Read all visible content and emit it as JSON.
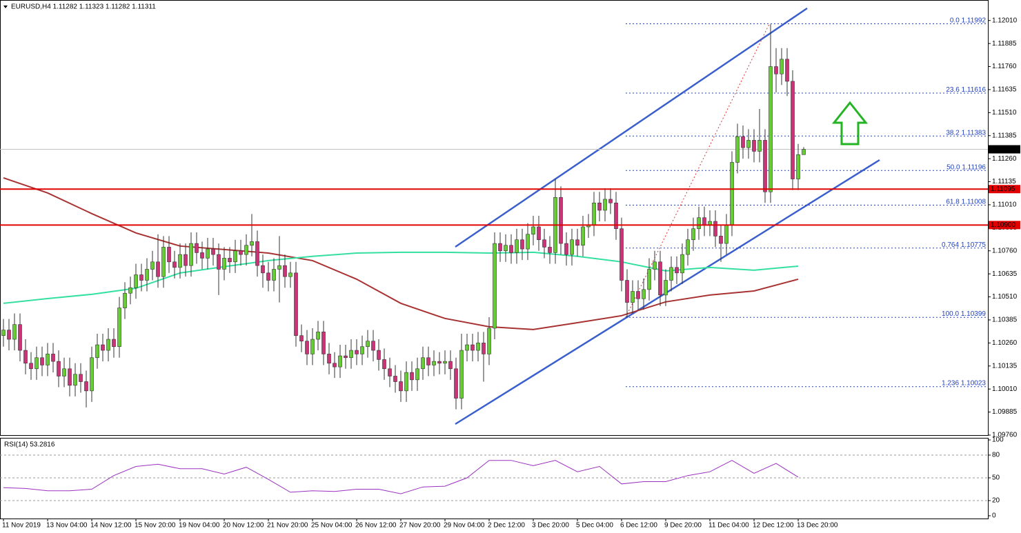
{
  "chart_data": [
    {
      "type": "candlestick",
      "title": "EURUSD,H4 1.11282 1.11323 1.11282 1.11311",
      "categories": [
        "11 Nov 2019",
        null,
        null,
        null,
        null,
        null,
        null,
        null,
        "13 Nov 04:00",
        null,
        null,
        null,
        null,
        null,
        null,
        null,
        "14 Nov 12:00",
        null,
        null,
        null,
        null,
        null,
        null,
        null,
        "15 Nov 20:00",
        null,
        null,
        null,
        null,
        null,
        null,
        null,
        "19 Nov 04:00",
        null,
        null,
        null,
        null,
        null,
        null,
        null,
        "20 Nov 12:00",
        null,
        null,
        null,
        null,
        null,
        null,
        null,
        "21 Nov 20:00",
        null,
        null,
        null,
        null,
        null,
        null,
        null,
        "25 Nov 04:00",
        null,
        null,
        null,
        null,
        null,
        null,
        null,
        "26 Nov 12:00",
        null,
        null,
        null,
        null,
        null,
        null,
        null,
        "27 Nov 20:00",
        null,
        null,
        null,
        null,
        null,
        null,
        null,
        "29 Nov 04:00",
        null,
        null,
        null,
        null,
        null,
        null,
        null,
        "2 Dec 12:00",
        null,
        null,
        null,
        null,
        null,
        null,
        null,
        "3 Dec 20:00",
        null,
        null,
        null,
        null,
        null,
        null,
        null,
        "5 Dec 04:00",
        null,
        null,
        null,
        null,
        null,
        null,
        null,
        "6 Dec 12:00",
        null,
        null,
        null,
        null,
        null,
        null,
        null,
        "9 Dec 20:00",
        null,
        null,
        null,
        null,
        null,
        null,
        null,
        "11 Dec 04:00",
        null,
        null,
        null,
        null,
        null,
        null,
        null,
        "12 Dec 12:00",
        null,
        null,
        null,
        null,
        null,
        null,
        null,
        "13 Dec 20:00",
        null
      ],
      "open": [
        1.103,
        1.1033,
        1.1028,
        1.1036,
        1.1022,
        1.1015,
        1.1012,
        1.1018,
        1.1014,
        1.102,
        1.1016,
        1.1008,
        1.1012,
        1.1003,
        1.1009,
        1.1005,
        1.1,
        1.1018,
        1.1025,
        1.1022,
        1.1028,
        1.1024,
        1.1045,
        1.1053,
        1.1056,
        1.1063,
        1.106,
        1.1066,
        1.107,
        1.1062,
        1.1078,
        1.107,
        1.1067,
        1.1074,
        1.1068,
        1.108,
        1.1075,
        1.1072,
        1.1077,
        1.1074,
        1.1066,
        1.1072,
        1.107,
        1.1076,
        1.1074,
        1.1079,
        1.1081,
        1.1068,
        1.1064,
        1.106,
        1.1066,
        1.1068,
        1.1062,
        1.1064,
        1.103,
        1.1027,
        1.102,
        1.1028,
        1.1032,
        1.102,
        1.1015,
        1.1013,
        1.1019,
        1.1018,
        1.1022,
        1.102,
        1.1024,
        1.1027,
        1.1022,
        1.1017,
        1.1012,
        1.1008,
        1.1005,
        1.1,
        1.101,
        1.1006,
        1.1012,
        1.1018,
        1.1014,
        1.1016,
        1.1015,
        1.1016,
        1.1012,
        1.0996,
        1.1022,
        1.1025,
        1.1022,
        1.1026,
        1.102,
        1.1034,
        1.108,
        1.1076,
        1.1079,
        1.1075,
        1.1082,
        1.1077,
        1.1085,
        1.1089,
        1.1082,
        1.1078,
        1.1075,
        1.1105,
        1.108,
        1.1074,
        1.1082,
        1.1079,
        1.1089,
        1.109,
        1.1102,
        1.1098,
        1.1104,
        1.1102,
        1.1088,
        1.106,
        1.1048,
        1.1054,
        1.105,
        1.1055,
        1.1066,
        1.107,
        1.1052,
        1.106,
        1.1067,
        1.1064,
        1.1074,
        1.1082,
        1.1088,
        1.1094,
        1.109,
        1.1092,
        1.1084,
        1.108,
        1.109,
        1.1124,
        1.1138,
        1.1132,
        1.1136,
        1.113,
        1.1136,
        1.1108,
        1.1176,
        1.1172,
        1.118,
        1.1168,
        1.1115,
        1.11282
      ],
      "high": [
        1.1039,
        1.1039,
        1.1042,
        1.1042,
        1.1028,
        1.1021,
        1.1024,
        1.1024,
        1.1026,
        1.1026,
        1.1022,
        1.1018,
        1.1018,
        1.1015,
        1.1015,
        1.1011,
        1.1024,
        1.1031,
        1.1031,
        1.1034,
        1.1034,
        1.1051,
        1.1059,
        1.1062,
        1.1069,
        1.1069,
        1.1072,
        1.1076,
        1.1085,
        1.1084,
        1.1084,
        1.1076,
        1.108,
        1.108,
        1.1086,
        1.1086,
        1.1081,
        1.1083,
        1.1083,
        1.108,
        1.1078,
        1.1078,
        1.1082,
        1.1082,
        1.1085,
        1.1096,
        1.1087,
        1.1074,
        1.107,
        1.1072,
        1.1084,
        1.1074,
        1.107,
        1.107,
        1.1036,
        1.1033,
        1.1034,
        1.1038,
        1.1038,
        1.1026,
        1.1021,
        1.1025,
        1.1025,
        1.1028,
        1.1028,
        1.103,
        1.1033,
        1.1033,
        1.1028,
        1.1023,
        1.1018,
        1.1014,
        1.1011,
        1.1016,
        1.1016,
        1.1018,
        1.1024,
        1.1024,
        1.1022,
        1.1021,
        1.1022,
        1.1022,
        1.1018,
        1.1031,
        1.1031,
        1.1031,
        1.1032,
        1.1032,
        1.104,
        1.1086,
        1.1086,
        1.1085,
        1.1085,
        1.1088,
        1.1088,
        1.1091,
        1.1095,
        1.1095,
        1.1088,
        1.1084,
        1.1115,
        1.1111,
        1.1086,
        1.1088,
        1.1088,
        1.1095,
        1.1096,
        1.1108,
        1.1108,
        1.111,
        1.111,
        1.1108,
        1.1094,
        1.1066,
        1.106,
        1.106,
        1.1061,
        1.1072,
        1.1076,
        1.1076,
        1.1066,
        1.1073,
        1.1073,
        1.108,
        1.1088,
        1.1094,
        1.11,
        1.11,
        1.1098,
        1.1098,
        1.109,
        1.1096,
        1.113,
        1.1145,
        1.1144,
        1.1142,
        1.1142,
        1.1153,
        1.1142,
        1.1199,
        1.1186,
        1.1186,
        1.1186,
        1.1174,
        1.1134,
        1.11323
      ],
      "low": [
        1.1024,
        1.1022,
        1.1022,
        1.1016,
        1.1009,
        1.1006,
        1.1006,
        1.1008,
        1.1008,
        1.101,
        1.1002,
        1.1002,
        1.0997,
        1.0997,
        1.0999,
        1.0991,
        1.0994,
        1.1012,
        1.1016,
        1.1016,
        1.1018,
        1.1018,
        1.1039,
        1.1047,
        1.105,
        1.1054,
        1.1054,
        1.106,
        1.1056,
        1.1056,
        1.1064,
        1.1061,
        1.1061,
        1.1062,
        1.1062,
        1.1069,
        1.1066,
        1.1066,
        1.1068,
        1.1052,
        1.106,
        1.1064,
        1.1064,
        1.1068,
        1.1068,
        1.1073,
        1.1062,
        1.1056,
        1.1054,
        1.1054,
        1.1048,
        1.1056,
        1.1056,
        1.1024,
        1.1021,
        1.1014,
        1.1014,
        1.1022,
        1.1014,
        1.1009,
        1.1007,
        1.1007,
        1.1012,
        1.1012,
        1.1014,
        1.1014,
        1.1018,
        1.1016,
        1.1011,
        1.1006,
        1.1002,
        1.0999,
        1.0994,
        1.0994,
        1.1,
        1.1,
        1.1006,
        1.1008,
        1.1008,
        1.1009,
        1.1009,
        1.1006,
        1.099,
        1.099,
        1.1016,
        1.1016,
        1.1016,
        1.1005,
        1.1014,
        1.1028,
        1.107,
        1.107,
        1.1069,
        1.1069,
        1.1071,
        1.1071,
        1.1079,
        1.1076,
        1.1072,
        1.1069,
        1.1069,
        1.1074,
        1.1068,
        1.1068,
        1.1073,
        1.1073,
        1.1083,
        1.1084,
        1.1092,
        1.1092,
        1.1096,
        1.1082,
        1.1054,
        1.104,
        1.1042,
        1.1044,
        1.1044,
        1.1049,
        1.106,
        1.1046,
        1.1046,
        1.1054,
        1.1058,
        1.1058,
        1.1068,
        1.1076,
        1.1082,
        1.1084,
        1.1084,
        1.1078,
        1.107,
        1.1074,
        1.1084,
        1.1118,
        1.1126,
        1.1126,
        1.1124,
        1.1124,
        1.1102,
        1.1102,
        1.1162,
        1.1166,
        1.116,
        1.1109,
        1.1109,
        1.11282
      ],
      "close": [
        1.1033,
        1.1028,
        1.1036,
        1.1022,
        1.1015,
        1.1012,
        1.1018,
        1.1014,
        1.102,
        1.1016,
        1.1008,
        1.1012,
        1.1003,
        1.1009,
        1.1005,
        1.1,
        1.1018,
        1.1025,
        1.1022,
        1.1028,
        1.1024,
        1.1045,
        1.1053,
        1.1056,
        1.1063,
        1.106,
        1.1066,
        1.107,
        1.1062,
        1.1078,
        1.107,
        1.1067,
        1.1074,
        1.1068,
        1.108,
        1.1075,
        1.1072,
        1.1077,
        1.1074,
        1.1066,
        1.1072,
        1.107,
        1.1076,
        1.1074,
        1.1079,
        1.1081,
        1.1068,
        1.1064,
        1.106,
        1.1066,
        1.1068,
        1.1062,
        1.1064,
        1.103,
        1.1027,
        1.102,
        1.1028,
        1.1032,
        1.102,
        1.1015,
        1.1013,
        1.1019,
        1.1018,
        1.1022,
        1.102,
        1.1024,
        1.1027,
        1.1022,
        1.1017,
        1.1012,
        1.1008,
        1.1005,
        1.1,
        1.101,
        1.1006,
        1.1012,
        1.1018,
        1.1014,
        1.1016,
        1.1015,
        1.1016,
        1.1012,
        1.0996,
        1.1022,
        1.1025,
        1.1022,
        1.1026,
        1.102,
        1.1034,
        1.108,
        1.1076,
        1.1079,
        1.1075,
        1.1082,
        1.1077,
        1.1085,
        1.1089,
        1.1082,
        1.1078,
        1.1075,
        1.1105,
        1.108,
        1.1074,
        1.1082,
        1.1079,
        1.1089,
        1.109,
        1.1102,
        1.1098,
        1.1104,
        1.1102,
        1.1088,
        1.106,
        1.1048,
        1.1054,
        1.105,
        1.1055,
        1.1066,
        1.107,
        1.1052,
        1.106,
        1.1067,
        1.1064,
        1.1074,
        1.1082,
        1.1088,
        1.1094,
        1.109,
        1.1092,
        1.1084,
        1.108,
        1.109,
        1.1124,
        1.1138,
        1.1132,
        1.1136,
        1.113,
        1.1136,
        1.1108,
        1.1176,
        1.1172,
        1.118,
        1.1168,
        1.1115,
        1.11282,
        1.11311
      ],
      "up_color": "#66cc33",
      "down_color": "#cc3377",
      "ylim": [
        1.0976,
        1.1211
      ],
      "yticks": [
        {
          "value": 1.1201,
          "label": "1.12010"
        },
        1.11885,
        {
          "value": 1.1176,
          "label": "1.11760"
        },
        1.11635,
        {
          "value": 1.1151,
          "label": "1.11510"
        },
        1.11385,
        {
          "value": 1.1126,
          "label": "1.11260"
        },
        1.11135,
        {
          "value": 1.1101,
          "label": "1.11010"
        },
        1.10885,
        {
          "value": 1.1076,
          "label": "1.10760"
        },
        1.10635,
        {
          "value": 1.1051,
          "label": "1.10510"
        },
        1.10385,
        {
          "value": 1.1026,
          "label": "1.10260"
        },
        1.10135,
        {
          "value": 1.1001,
          "label": "1.10010"
        },
        1.09885,
        {
          "value": 1.0976,
          "label": "1.09760"
        }
      ],
      "ma_lines": [
        {
          "color": "#a83232",
          "values": [
            1.11156,
            1.11074,
            1.10962,
            1.10857,
            1.10786,
            1.10767,
            1.10748,
            1.10707,
            1.10606,
            1.10475,
            1.10393,
            1.10348,
            1.10333,
            1.1037,
            1.10408,
            1.10483,
            1.1052,
            1.10542,
            1.10606
          ]
        },
        {
          "color": "#33e0a0",
          "values": [
            1.10475,
            1.10501,
            1.10524,
            1.10557,
            1.1064,
            1.10674,
            1.10707,
            1.1073,
            1.10748,
            1.10752,
            1.10752,
            1.10748,
            1.10752,
            1.1073,
            1.107,
            1.10651,
            1.1067,
            1.10655,
            1.10677
          ]
        }
      ],
      "fib_levels": [
        {
          "label": "0.0",
          "value": 1.11992
        },
        {
          "label": "23.6",
          "value": 1.11616
        },
        {
          "label": "38.2",
          "value": 1.11383
        },
        {
          "label": "50.0",
          "value": 1.11196
        },
        {
          "label": "61.8",
          "value": 1.11008
        },
        {
          "label": "0.764",
          "value": 1.10775
        },
        {
          "label": "100.0",
          "value": 1.10399
        },
        {
          "label": "1.236",
          "value": 1.10023
        }
      ],
      "levels": [
        {
          "value": 1.11095
        },
        {
          "value": 1.109,
          "label": "1.10900"
        }
      ],
      "level_color": "#e00000",
      "last_price": 1.11311
    },
    {
      "type": "line",
      "title": "RSI(14) 53.2816",
      "values": [
        37,
        36,
        33,
        33,
        35,
        53,
        65,
        68,
        62,
        62,
        55,
        64,
        48,
        31,
        33,
        32,
        35,
        35,
        29,
        38,
        39,
        50,
        73,
        73,
        66,
        73,
        58,
        65,
        42,
        45,
        45,
        53,
        58,
        73,
        56,
        69,
        51
      ],
      "color": "#9b30c0",
      "ylim": [
        0,
        100
      ],
      "yticks": [
        0,
        20,
        50,
        80,
        100
      ]
    }
  ]
}
